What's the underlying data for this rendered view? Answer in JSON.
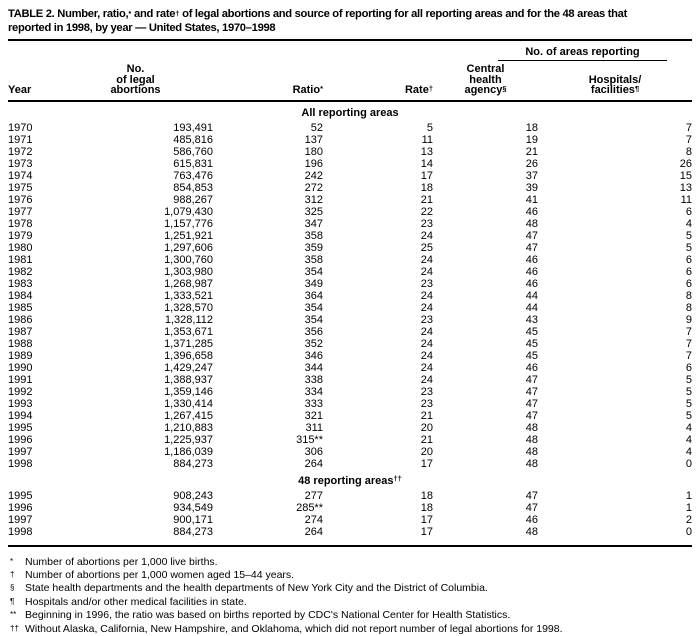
{
  "title": {
    "part1": "TABLE 2. Number, ratio,",
    "sup1": "*",
    "part2": " and rate",
    "sup2": "†",
    "part3": " of legal abortions and source of reporting for all reporting areas and for the 48 areas that",
    "line2": "reported in 1998, by year — United States, 1970–1998"
  },
  "table": {
    "spanner_label": "No. of areas reporting",
    "headers": {
      "year": "Year",
      "abortions_line1": "No.",
      "abortions_line2": "of legal",
      "abortions_line3": "abortions",
      "ratio": "Ratio",
      "ratio_sup": "*",
      "rate": "Rate",
      "rate_sup": "†",
      "agency_line1": "Central",
      "agency_line2": "health",
      "agency_line3": "agency",
      "agency_sup": "§",
      "hospitals_line1": "Hospitals/",
      "hospitals_line2": "facilities",
      "hospitals_sup": "¶"
    },
    "sections": [
      {
        "label": "All reporting areas",
        "label_sup": "",
        "rows": [
          [
            "1970",
            "193,491",
            "52",
            "5",
            "18",
            "7"
          ],
          [
            "1971",
            "485,816",
            "137",
            "11",
            "19",
            "7"
          ],
          [
            "1972",
            "586,760",
            "180",
            "13",
            "21",
            "8"
          ],
          [
            "1973",
            "615,831",
            "196",
            "14",
            "26",
            "26"
          ],
          [
            "1974",
            "763,476",
            "242",
            "17",
            "37",
            "15"
          ],
          [
            "1975",
            "854,853",
            "272",
            "18",
            "39",
            "13"
          ],
          [
            "1976",
            "988,267",
            "312",
            "21",
            "41",
            "11"
          ],
          [
            "1977",
            "1,079,430",
            "325",
            "22",
            "46",
            "6"
          ],
          [
            "1978",
            "1,157,776",
            "347",
            "23",
            "48",
            "4"
          ],
          [
            "1979",
            "1,251,921",
            "358",
            "24",
            "47",
            "5"
          ],
          [
            "1980",
            "1,297,606",
            "359",
            "25",
            "47",
            "5"
          ],
          [
            "1981",
            "1,300,760",
            "358",
            "24",
            "46",
            "6"
          ],
          [
            "1982",
            "1,303,980",
            "354",
            "24",
            "46",
            "6"
          ],
          [
            "1983",
            "1,268,987",
            "349",
            "23",
            "46",
            "6"
          ],
          [
            "1984",
            "1,333,521",
            "364",
            "24",
            "44",
            "8"
          ],
          [
            "1985",
            "1,328,570",
            "354",
            "24",
            "44",
            "8"
          ],
          [
            "1986",
            "1,328,112",
            "354",
            "23",
            "43",
            "9"
          ],
          [
            "1987",
            "1,353,671",
            "356",
            "24",
            "45",
            "7"
          ],
          [
            "1988",
            "1,371,285",
            "352",
            "24",
            "45",
            "7"
          ],
          [
            "1989",
            "1,396,658",
            "346",
            "24",
            "45",
            "7"
          ],
          [
            "1990",
            "1,429,247",
            "344",
            "24",
            "46",
            "6"
          ],
          [
            "1991",
            "1,388,937",
            "338",
            "24",
            "47",
            "5"
          ],
          [
            "1992",
            "1,359,146",
            "334",
            "23",
            "47",
            "5"
          ],
          [
            "1993",
            "1,330,414",
            "333",
            "23",
            "47",
            "5"
          ],
          [
            "1994",
            "1,267,415",
            "321",
            "21",
            "47",
            "5"
          ],
          [
            "1995",
            "1,210,883",
            "311",
            "20",
            "48",
            "4"
          ],
          [
            "1996",
            "1,225,937",
            "315**",
            "21",
            "48",
            "4"
          ],
          [
            "1997",
            "1,186,039",
            "306",
            "20",
            "48",
            "4"
          ],
          [
            "1998",
            "884,273",
            "264",
            "17",
            "48",
            "0"
          ]
        ]
      },
      {
        "label": "48 reporting areas",
        "label_sup": "††",
        "rows": [
          [
            "1995",
            "908,243",
            "277",
            "18",
            "47",
            "1"
          ],
          [
            "1996",
            "934,549",
            "285**",
            "18",
            "47",
            "1"
          ],
          [
            "1997",
            "900,171",
            "274",
            "17",
            "46",
            "2"
          ],
          [
            "1998",
            "884,273",
            "264",
            "17",
            "48",
            "0"
          ]
        ]
      }
    ]
  },
  "footnotes": [
    {
      "marker": "*",
      "text": "Number of abortions per 1,000 live births."
    },
    {
      "marker": "†",
      "text": "Number of abortions per 1,000 women aged 15–44 years."
    },
    {
      "marker": "§",
      "text": "State health departments and the health departments of New York City and the District of Columbia."
    },
    {
      "marker": "¶",
      "text": "Hospitals and/or other medical facilities in state."
    },
    {
      "marker": "**",
      "text": "Beginning in 1996, the ratio was based on births reported by CDC's National Center for Health Statistics."
    },
    {
      "marker": "††",
      "text": "Without Alaska, California, New Hampshire, and Oklahoma, which did not report number of legal abortions for 1998."
    }
  ]
}
